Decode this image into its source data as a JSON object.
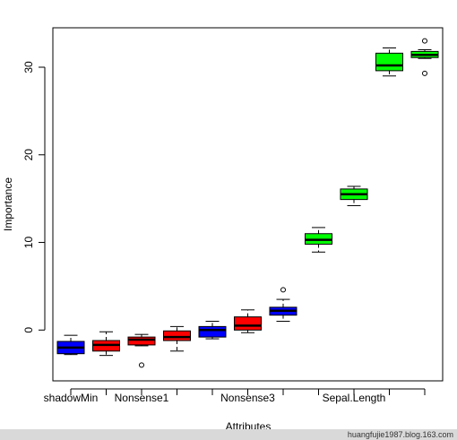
{
  "chart_data": {
    "type": "boxplot",
    "xlabel": "Attributes",
    "ylabel": "Importance",
    "ylim": [
      -5.8,
      34.5
    ],
    "yticks": [
      0,
      10,
      20,
      30
    ],
    "x_tick_labels": [
      "shadowMin",
      "Nonsense1",
      "Nonsense3",
      "Sepal.Length"
    ],
    "x_tick_label_positions": [
      1,
      3,
      6,
      9
    ],
    "box_colors": {
      "blue": "#0000ff",
      "red": "#ff0000",
      "green": "#00ff00"
    },
    "boxes": [
      {
        "color": "blue",
        "whisker_low": -2.8,
        "q1": -2.7,
        "median": -2.0,
        "q3": -1.3,
        "whisker_high": -0.6,
        "outliers": []
      },
      {
        "color": "red",
        "whisker_low": -2.9,
        "q1": -2.4,
        "median": -1.7,
        "q3": -1.2,
        "whisker_high": -0.2,
        "outliers": []
      },
      {
        "color": "red",
        "whisker_low": -1.8,
        "q1": -1.7,
        "median": -1.1,
        "q3": -0.8,
        "whisker_high": -0.5,
        "outliers": [
          -4.0
        ]
      },
      {
        "color": "red",
        "whisker_low": -2.4,
        "q1": -1.2,
        "median": -0.8,
        "q3": -0.1,
        "whisker_high": 0.4,
        "outliers": []
      },
      {
        "color": "blue",
        "whisker_low": -1.0,
        "q1": -0.8,
        "median": 0.0,
        "q3": 0.4,
        "whisker_high": 1.0,
        "outliers": []
      },
      {
        "color": "red",
        "whisker_low": -0.3,
        "q1": 0.0,
        "median": 0.5,
        "q3": 1.5,
        "whisker_high": 2.3,
        "outliers": []
      },
      {
        "color": "blue",
        "whisker_low": 1.0,
        "q1": 1.7,
        "median": 2.2,
        "q3": 2.6,
        "whisker_high": 3.5,
        "outliers": [
          4.6
        ]
      },
      {
        "color": "green",
        "whisker_low": 8.9,
        "q1": 9.8,
        "median": 10.3,
        "q3": 11.0,
        "whisker_high": 11.7,
        "outliers": []
      },
      {
        "color": "green",
        "whisker_low": 14.2,
        "q1": 14.9,
        "median": 15.5,
        "q3": 16.1,
        "whisker_high": 16.4,
        "outliers": []
      },
      {
        "color": "green",
        "whisker_low": 29.0,
        "q1": 29.6,
        "median": 30.2,
        "q3": 31.6,
        "whisker_high": 32.2,
        "outliers": []
      },
      {
        "color": "green",
        "whisker_low": 31.0,
        "q1": 31.1,
        "median": 31.4,
        "q3": 31.8,
        "whisker_high": 32.0,
        "outliers": [
          29.3,
          33.0
        ]
      }
    ]
  },
  "watermark": "huangfujie1987.blog.163.com"
}
